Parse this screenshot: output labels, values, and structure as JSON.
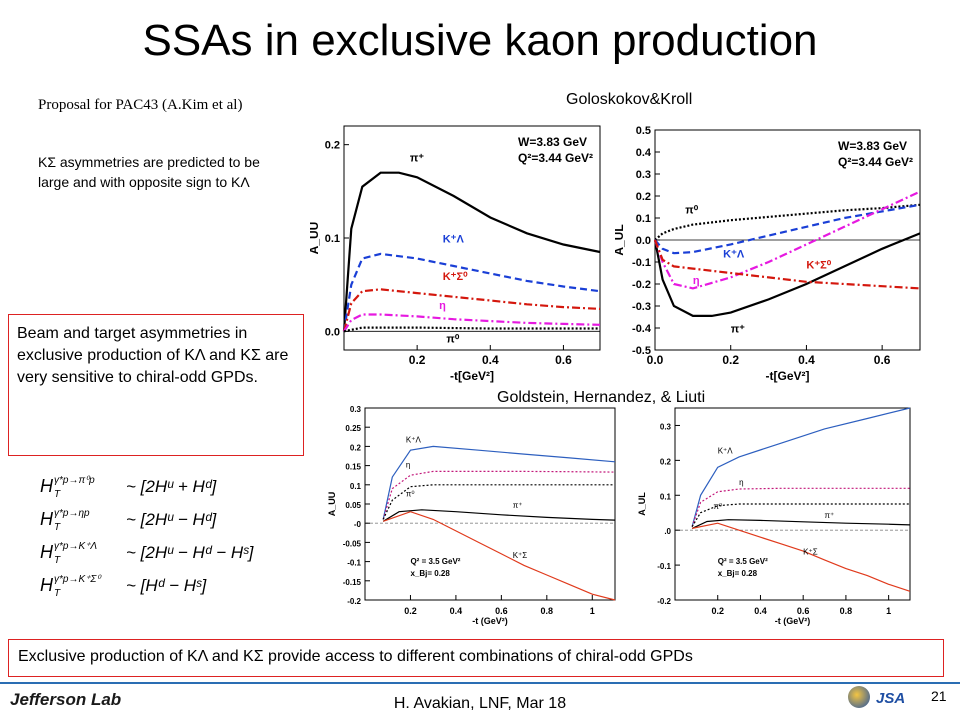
{
  "slide": {
    "title": "SSAs in exclusive kaon production",
    "proposal": "Proposal for PAC43 (A.Kim et al)",
    "gk_label": "Goloskokov&Kroll",
    "ksigma_note": "KΣ asymmetries are predicted to be large and with opposite sign to KΛ",
    "beam_box": "Beam and target asymmetries in exclusive production of KΛ and KΣ are very sensitive to chiral-odd GPDs.",
    "ghl_label": "Goldstein, Hernandez, & Liuti",
    "bottom_box": "Exclusive production of KΛ and KΣ provide access to different combinations of chiral-odd GPDs",
    "footer": "H. Avakian,  LNF,  Mar 18",
    "page_number": "21",
    "logo": "Jefferson Lab",
    "logo2": "JSA"
  },
  "chart_data": [
    {
      "type": "line",
      "ylabel": "A_UU",
      "xlabel": "-t[GeV²]",
      "xlim": [
        0,
        0.7
      ],
      "ylim": [
        -0.02,
        0.22
      ],
      "yticks": [
        "0.0",
        "0.1",
        "0.2"
      ],
      "xticks": [
        "0.2",
        "0.4",
        "0.6"
      ],
      "annotation": [
        "W=3.83 GeV",
        "Q²=3.44 GeV²"
      ],
      "series": [
        {
          "name": "π⁺",
          "color": "#000000",
          "dash": "solid",
          "x": [
            0,
            0.02,
            0.05,
            0.1,
            0.15,
            0.2,
            0.3,
            0.4,
            0.5,
            0.6,
            0.7
          ],
          "y": [
            0,
            0.11,
            0.155,
            0.17,
            0.17,
            0.165,
            0.145,
            0.122,
            0.105,
            0.093,
            0.085
          ]
        },
        {
          "name": "K⁺Λ",
          "color": "#1a3fd6",
          "dash": "dashed",
          "x": [
            0,
            0.02,
            0.05,
            0.1,
            0.2,
            0.3,
            0.4,
            0.5,
            0.6,
            0.7
          ],
          "y": [
            0,
            0.05,
            0.078,
            0.083,
            0.078,
            0.07,
            0.062,
            0.054,
            0.048,
            0.043
          ]
        },
        {
          "name": "K⁺Σ⁰",
          "color": "#d4170d",
          "dash": "dashdot",
          "x": [
            0,
            0.02,
            0.05,
            0.1,
            0.2,
            0.3,
            0.4,
            0.5,
            0.6,
            0.7
          ],
          "y": [
            0,
            0.03,
            0.043,
            0.045,
            0.041,
            0.037,
            0.033,
            0.029,
            0.026,
            0.024
          ]
        },
        {
          "name": "η",
          "color": "#e619e0",
          "dash": "dashdot",
          "x": [
            0,
            0.02,
            0.05,
            0.1,
            0.2,
            0.3,
            0.4,
            0.5,
            0.6,
            0.7
          ],
          "y": [
            0,
            0.012,
            0.018,
            0.018,
            0.016,
            0.013,
            0.011,
            0.009,
            0.008,
            0.007
          ]
        },
        {
          "name": "π⁰",
          "color": "#000000",
          "dash": "dotted",
          "x": [
            0,
            0.05,
            0.2,
            0.4,
            0.7
          ],
          "y": [
            0,
            0.004,
            0.004,
            0.003,
            0.003
          ]
        }
      ]
    },
    {
      "type": "line",
      "ylabel": "A_UL",
      "xlabel": "-t[GeV²]",
      "xlim": [
        0,
        0.7
      ],
      "ylim": [
        -0.5,
        0.5
      ],
      "yticks": [
        "-0.5",
        "-0.4",
        "-0.3",
        "-0.2",
        "-0.1",
        "0.0",
        "0.1",
        "0.2",
        "0.3",
        "0.4",
        "0.5"
      ],
      "xticks": [
        "0.0",
        "0.2",
        "0.4",
        "0.6"
      ],
      "annotation": [
        "W=3.83 GeV",
        "Q²=3.44 GeV²"
      ],
      "series": [
        {
          "name": "π⁺",
          "color": "#000000",
          "dash": "solid",
          "x": [
            0,
            0.02,
            0.05,
            0.1,
            0.15,
            0.2,
            0.3,
            0.4,
            0.5,
            0.6,
            0.7
          ],
          "y": [
            0,
            -0.18,
            -0.3,
            -0.345,
            -0.345,
            -0.33,
            -0.27,
            -0.2,
            -0.12,
            -0.04,
            0.03
          ]
        },
        {
          "name": "π⁰",
          "color": "#000000",
          "dash": "dotted",
          "x": [
            0,
            0.02,
            0.05,
            0.1,
            0.2,
            0.3,
            0.4,
            0.5,
            0.6,
            0.7
          ],
          "y": [
            0,
            0.03,
            0.05,
            0.07,
            0.09,
            0.105,
            0.12,
            0.135,
            0.145,
            0.16
          ]
        },
        {
          "name": "K⁺Λ",
          "color": "#1a3fd6",
          "dash": "dashed",
          "x": [
            0,
            0.02,
            0.05,
            0.1,
            0.2,
            0.3,
            0.4,
            0.5,
            0.6,
            0.7
          ],
          "y": [
            0,
            -0.04,
            -0.06,
            -0.055,
            -0.02,
            0.02,
            0.06,
            0.1,
            0.13,
            0.16
          ]
        },
        {
          "name": "η",
          "color": "#e619e0",
          "dash": "dashdot",
          "x": [
            0,
            0.02,
            0.05,
            0.1,
            0.2,
            0.3,
            0.4,
            0.5,
            0.6,
            0.7
          ],
          "y": [
            0,
            -0.1,
            -0.2,
            -0.22,
            -0.17,
            -0.1,
            -0.02,
            0.06,
            0.14,
            0.22
          ]
        },
        {
          "name": "K⁺Σ⁰",
          "color": "#d4170d",
          "dash": "dashdot",
          "x": [
            0,
            0.02,
            0.05,
            0.1,
            0.2,
            0.3,
            0.4,
            0.5,
            0.6,
            0.7
          ],
          "y": [
            0,
            -0.09,
            -0.12,
            -0.13,
            -0.15,
            -0.17,
            -0.19,
            -0.2,
            -0.21,
            -0.22
          ]
        }
      ]
    },
    {
      "type": "line",
      "ylabel": "A_UU",
      "xlabel": "-t (GeV²)",
      "xlim": [
        0,
        1.1
      ],
      "ylim": [
        -0.2,
        0.3
      ],
      "yticks": [
        "0.3",
        "0.25",
        "0.2",
        "0.15",
        "0.1",
        "0.05",
        "-0",
        "-0.05",
        "-0.1",
        "-0.15",
        "-0.2"
      ],
      "xticks": [
        "0.2",
        "0.4",
        "0.6",
        "0.8",
        "1"
      ],
      "annotation": [
        "Q² = 3.5 GeV²",
        "x_Bj= 0.28"
      ],
      "series": [
        {
          "name": "K⁺Λ",
          "color": "#2d5fbf",
          "dash": "solid",
          "x": [
            0.08,
            0.12,
            0.2,
            0.3,
            0.5,
            0.7,
            0.9,
            1.1
          ],
          "y": [
            0.01,
            0.12,
            0.19,
            0.2,
            0.19,
            0.18,
            0.17,
            0.16
          ]
        },
        {
          "name": "η",
          "color": "#c2187a",
          "dash": "dotted",
          "x": [
            0.08,
            0.12,
            0.2,
            0.3,
            0.5,
            0.7,
            0.9,
            1.1
          ],
          "y": [
            0.01,
            0.09,
            0.125,
            0.135,
            0.135,
            0.135,
            0.134,
            0.133
          ]
        },
        {
          "name": "π⁰",
          "color": "#000000",
          "dash": "dotted",
          "x": [
            0.08,
            0.12,
            0.2,
            0.3,
            0.5,
            0.7,
            0.9,
            1.1
          ],
          "y": [
            0.01,
            0.06,
            0.095,
            0.1,
            0.1,
            0.1,
            0.1,
            0.1
          ]
        },
        {
          "name": "π⁺",
          "color": "#000000",
          "dash": "solid",
          "x": [
            0.08,
            0.15,
            0.25,
            0.4,
            0.6,
            0.8,
            1.0,
            1.1
          ],
          "y": [
            0.005,
            0.03,
            0.035,
            0.03,
            0.022,
            0.015,
            0.01,
            0.008
          ]
        },
        {
          "name": "K⁺Σ",
          "color": "#e03a1c",
          "dash": "solid",
          "x": [
            0.08,
            0.2,
            0.3,
            0.4,
            0.5,
            0.6,
            0.7,
            0.8,
            0.9,
            1.0,
            1.1
          ],
          "y": [
            0.005,
            0.03,
            0.01,
            -0.02,
            -0.05,
            -0.08,
            -0.11,
            -0.135,
            -0.16,
            -0.185,
            -0.2
          ]
        }
      ]
    },
    {
      "type": "line",
      "ylabel": "A_UL",
      "xlabel": "-t (GeV²)",
      "xlim": [
        0,
        1.1
      ],
      "ylim": [
        -0.2,
        0.35
      ],
      "yticks": [
        "0.3",
        "0.2",
        "0.1",
        ".0",
        "-0.1",
        "-0.2"
      ],
      "xticks": [
        "0.2",
        "0.4",
        "0.6",
        "0.8",
        "1"
      ],
      "annotation": [
        "Q² = 3.5 GeV²",
        "x_Bj= 0.28"
      ],
      "series": [
        {
          "name": "K⁺Λ",
          "color": "#2d5fbf",
          "dash": "solid",
          "x": [
            0.08,
            0.12,
            0.2,
            0.3,
            0.5,
            0.7,
            0.9,
            1.1
          ],
          "y": [
            0.01,
            0.1,
            0.18,
            0.21,
            0.25,
            0.29,
            0.32,
            0.35
          ]
        },
        {
          "name": "η",
          "color": "#c2187a",
          "dash": "dotted",
          "x": [
            0.08,
            0.12,
            0.2,
            0.3,
            0.5,
            0.7,
            0.9,
            1.1
          ],
          "y": [
            0.01,
            0.08,
            0.11,
            0.118,
            0.12,
            0.12,
            0.12,
            0.12
          ]
        },
        {
          "name": "π⁰",
          "color": "#000000",
          "dash": "dotted",
          "x": [
            0.08,
            0.12,
            0.2,
            0.3,
            0.5,
            0.7,
            0.9,
            1.1
          ],
          "y": [
            0.01,
            0.05,
            0.07,
            0.075,
            0.075,
            0.075,
            0.075,
            0.075
          ]
        },
        {
          "name": "π⁺",
          "color": "#000000",
          "dash": "solid",
          "x": [
            0.08,
            0.15,
            0.25,
            0.4,
            0.6,
            0.8,
            1.0,
            1.1
          ],
          "y": [
            0.005,
            0.025,
            0.03,
            0.028,
            0.024,
            0.02,
            0.017,
            0.015
          ]
        },
        {
          "name": "K⁺Σ",
          "color": "#e03a1c",
          "dash": "solid",
          "x": [
            0.08,
            0.2,
            0.3,
            0.4,
            0.5,
            0.6,
            0.7,
            0.8,
            0.9,
            1.0,
            1.1
          ],
          "y": [
            0.005,
            0.02,
            0.0,
            -0.02,
            -0.04,
            -0.06,
            -0.085,
            -0.11,
            -0.13,
            -0.155,
            -0.175
          ]
        }
      ]
    }
  ],
  "equations": [
    {
      "lhs": "H",
      "lhs_sup": "γ*p→π⁰p",
      "rhs": "~ [2Hᵘ + Hᵈ]"
    },
    {
      "lhs": "H",
      "lhs_sup": "γ*p→ηp",
      "rhs": "~ [2Hᵘ − Hᵈ]"
    },
    {
      "lhs": "H",
      "lhs_sup": "γ*p→K⁺Λ",
      "rhs": "~ [2Hᵘ − Hᵈ − Hˢ]"
    },
    {
      "lhs": "H",
      "lhs_sup": "γ*p→K⁺Σ⁰",
      "rhs": "~ [Hᵈ − Hˢ]"
    }
  ]
}
